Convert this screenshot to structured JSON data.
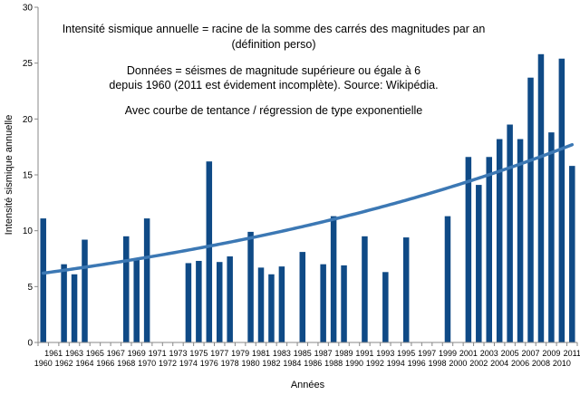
{
  "chart_data": {
    "type": "bar",
    "annotation_lines": [
      "Intensité sismique annuelle = racine de la somme des carrés des magnitudes par an",
      "(définition perso)",
      "",
      "Données = séismes de magnitude supérieure ou égale à 6",
      "depuis 1960 (2011 est évidement incomplète). Source: Wikipédia.",
      "",
      "Avec courbe de tentance / régression de type exponentielle"
    ],
    "xlabel": "Années",
    "ylabel": "Intensité sismique annuelle",
    "ylim": [
      0,
      30
    ],
    "yticks": [
      0,
      5,
      10,
      15,
      20,
      25,
      30
    ],
    "categories": [
      "1960",
      "1961",
      "1962",
      "1963",
      "1964",
      "1965",
      "1966",
      "1967",
      "1968",
      "1969",
      "1970",
      "1971",
      "1972",
      "1973",
      "1974",
      "1975",
      "1976",
      "1977",
      "1978",
      "1979",
      "1980",
      "1981",
      "1982",
      "1983",
      "1984",
      "1985",
      "1986",
      "1987",
      "1988",
      "1989",
      "1990",
      "1991",
      "1992",
      "1993",
      "1994",
      "1995",
      "1996",
      "1997",
      "1998",
      "1999",
      "2000",
      "2001",
      "2002",
      "2003",
      "2004",
      "2005",
      "2006",
      "2007",
      "2008",
      "2009",
      "2010",
      "2011"
    ],
    "values": [
      11.1,
      0,
      7.0,
      6.1,
      9.2,
      0,
      0,
      0,
      9.5,
      7.4,
      11.1,
      0,
      0,
      0,
      7.1,
      7.3,
      16.2,
      7.2,
      7.7,
      0,
      9.9,
      6.7,
      6.1,
      6.8,
      0,
      8.1,
      0,
      7.0,
      11.3,
      6.9,
      0,
      9.5,
      0,
      6.3,
      0,
      9.4,
      0,
      0,
      0,
      11.3,
      0,
      16.6,
      14.1,
      16.6,
      18.2,
      19.5,
      18.2,
      23.7,
      25.8,
      18.8,
      25.4,
      15.8
    ],
    "trend": {
      "type": "exponential",
      "start_value": 6.2,
      "end_value": 17.7
    },
    "colors": {
      "bar": "#0f4a86",
      "trend": "#3c78b4",
      "axis": "#888888"
    },
    "grid": false,
    "legend": "none"
  }
}
